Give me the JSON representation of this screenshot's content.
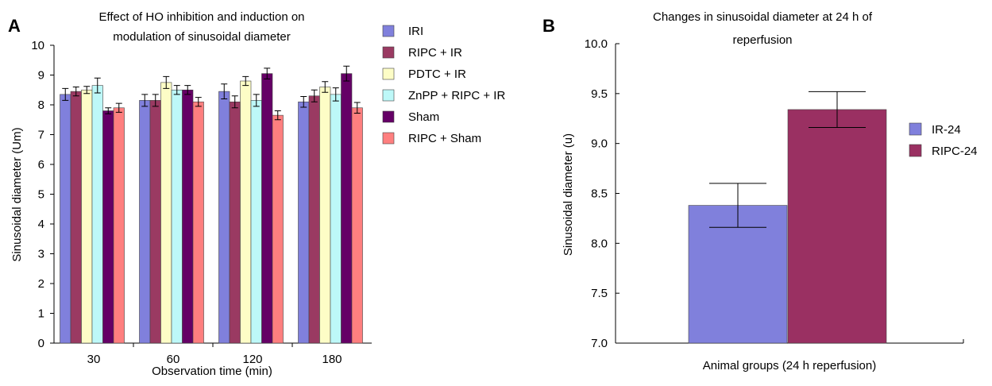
{
  "figure": {
    "panel_a_letter": "A",
    "panel_b_letter": "B"
  },
  "colors": {
    "IRI": "#8080dc",
    "RIPC + IR": "#9a3a62",
    "PDTC + IR": "#fdfdc6",
    "ZnPP + RIPC + IR": "#bdf8f8",
    "Sham": "#650066",
    "RIPC + Sham": "#fe7f7f",
    "IR-24": "#8080dc",
    "RIPC-24": "#9a3062"
  },
  "chart_data": [
    {
      "type": "bar",
      "title": "Effect of HO inhibition and induction on modulation of sinusoidal diameter",
      "title_lines": [
        "Effect of HO inhibition and induction on",
        "modulation of sinusoidal diameter"
      ],
      "xlabel": "Observation time (min)",
      "ylabel": "Sinusoidal diameter (Um)",
      "ylim": [
        0,
        10
      ],
      "yticks": [
        0,
        1,
        2,
        3,
        4,
        5,
        6,
        7,
        8,
        9,
        10
      ],
      "categories": [
        "30",
        "60",
        "120",
        "180"
      ],
      "legend_position": "right",
      "grid": false,
      "series": [
        {
          "name": "IRI",
          "values": [
            8.35,
            8.15,
            8.45,
            8.1
          ],
          "errors": [
            0.2,
            0.2,
            0.25,
            0.18
          ]
        },
        {
          "name": "RIPC + IR",
          "values": [
            8.45,
            8.15,
            8.1,
            8.3
          ],
          "errors": [
            0.15,
            0.2,
            0.2,
            0.2
          ]
        },
        {
          "name": "PDTC + IR",
          "values": [
            8.5,
            8.75,
            8.8,
            8.6
          ],
          "errors": [
            0.12,
            0.2,
            0.15,
            0.18
          ]
        },
        {
          "name": "ZnPP + RIPC + IR",
          "values": [
            8.65,
            8.5,
            8.15,
            8.35
          ],
          "errors": [
            0.25,
            0.15,
            0.2,
            0.22
          ]
        },
        {
          "name": "Sham",
          "values": [
            7.8,
            8.5,
            9.05,
            9.05
          ],
          "errors": [
            0.1,
            0.15,
            0.18,
            0.25
          ]
        },
        {
          "name": "RIPC + Sham",
          "values": [
            7.9,
            8.1,
            7.65,
            7.9
          ],
          "errors": [
            0.15,
            0.15,
            0.15,
            0.18
          ]
        }
      ]
    },
    {
      "type": "bar",
      "title": "Changes in sinusoidal diameter at 24 h of reperfusion",
      "title_lines": [
        "Changes in sinusoidal diameter at 24 h of",
        "reperfusion"
      ],
      "xlabel": "Animal groups (24 h reperfusion)",
      "ylabel": "Sinusoidal diameter (u)",
      "ylim": [
        7.0,
        10.0
      ],
      "yticks": [
        "7.0",
        "7.5",
        "8.0",
        "8.5",
        "9.0",
        "9.5",
        "10.0"
      ],
      "legend_position": "right",
      "grid": false,
      "series": [
        {
          "name": "IR-24",
          "value": 8.38,
          "error": 0.22
        },
        {
          "name": "RIPC-24",
          "value": 9.34,
          "error": 0.18
        }
      ]
    }
  ]
}
